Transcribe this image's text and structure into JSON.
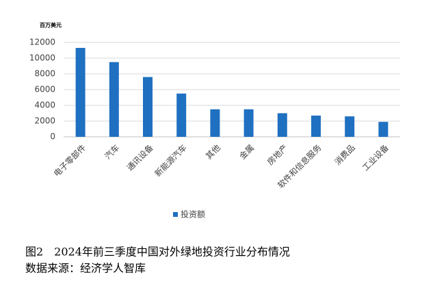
{
  "chart_data": {
    "type": "bar",
    "ylabel": "百万美元",
    "categories": [
      "电子零部件",
      "汽车",
      "通讯设备",
      "新能源汽车",
      "其他",
      "金属",
      "房地产",
      "软件和信息服务",
      "消费品",
      "工业设备"
    ],
    "series": [
      {
        "name": "投资额",
        "color": "#1f70c1",
        "values": [
          11300,
          9500,
          7600,
          5500,
          3500,
          3500,
          3000,
          2700,
          2600,
          1900
        ]
      }
    ],
    "ylim": [
      0,
      12000
    ],
    "yticks": [
      0,
      2000,
      4000,
      6000,
      8000,
      10000,
      12000
    ],
    "grid": true,
    "legend": "bottom",
    "caption": [
      "图2　2024年前三季度中国对外绿地投资行业分布情况",
      "数据来源：经济学人智库"
    ]
  }
}
